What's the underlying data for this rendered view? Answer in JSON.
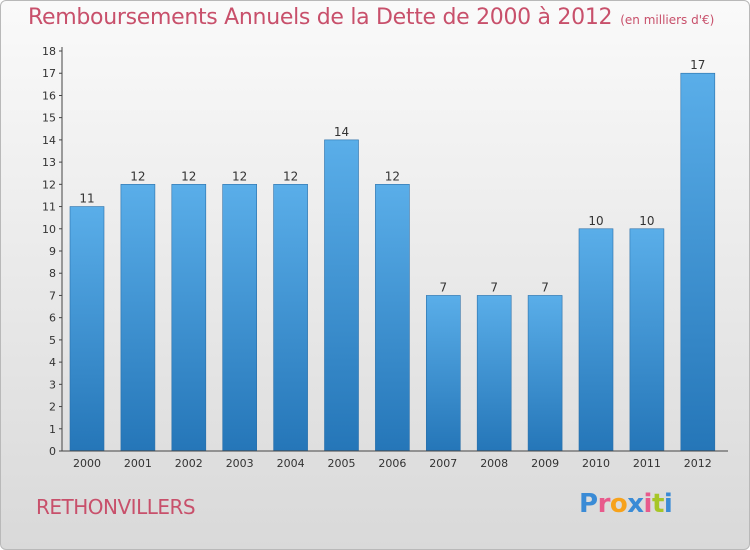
{
  "title": "Remboursements Annuels de la Dette de 2000 à 2012",
  "subtitle": "(en milliers d'€)",
  "commune": "RETHONVILLERS",
  "brand": {
    "letters": [
      "P",
      "r",
      "o",
      "x",
      "i",
      "t",
      "i"
    ],
    "colors": [
      "#3a8bd6",
      "#e85a8c",
      "#f7a21b",
      "#3a8bd6",
      "#e85a8c",
      "#a7c627",
      "#3a8bd6"
    ]
  },
  "colors": {
    "title": "#c8506b",
    "bar_top": "#5aaee9",
    "bar_bottom": "#2576b8",
    "axis": "#444444",
    "tick_text": "#333333"
  },
  "chart_data": {
    "type": "bar",
    "categories": [
      "2000",
      "2001",
      "2002",
      "2003",
      "2004",
      "2005",
      "2006",
      "2007",
      "2008",
      "2009",
      "2010",
      "2011",
      "2012"
    ],
    "values": [
      11,
      12,
      12,
      12,
      12,
      14,
      12,
      7,
      7,
      7,
      10,
      10,
      17
    ],
    "ylim": [
      0,
      18
    ],
    "yticks": [
      0,
      1,
      2,
      3,
      4,
      5,
      6,
      7,
      8,
      9,
      10,
      11,
      12,
      13,
      14,
      15,
      16,
      17,
      18
    ],
    "grid": false,
    "data_labels": true
  }
}
